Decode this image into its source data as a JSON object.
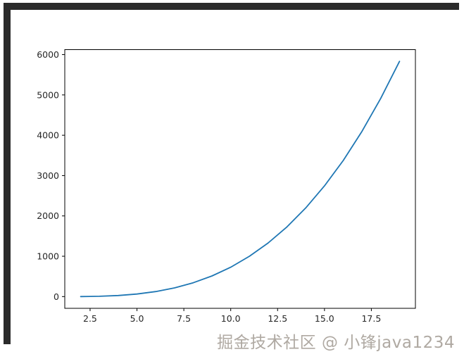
{
  "window": {
    "frame_color": "#2b2b2b",
    "background_color": "#ffffff"
  },
  "watermark": {
    "text": "掘金技术社区 @ 小锋java1234",
    "color": "#afa9a2"
  },
  "chart_data": {
    "type": "line",
    "title": "",
    "xlabel": "",
    "ylabel": "",
    "grid": false,
    "legend": "none",
    "line_color": "#1f77b4",
    "line_width": 1.8,
    "axes_color": "#000000",
    "tick_label_color": "#262626",
    "x": [
      2,
      3,
      4,
      5,
      6,
      7,
      8,
      9,
      10,
      11,
      12,
      13,
      14,
      15,
      16,
      17,
      18,
      19
    ],
    "y": [
      1,
      8,
      27,
      64,
      125,
      216,
      343,
      512,
      729,
      1000,
      1331,
      1728,
      2197,
      2744,
      3375,
      4096,
      4913,
      5832
    ],
    "xlim": [
      1.15,
      19.85
    ],
    "ylim": [
      -291,
      6123
    ],
    "xticks": [
      2.5,
      5.0,
      7.5,
      10.0,
      12.5,
      15.0,
      17.5
    ],
    "xtick_labels": [
      "2.5",
      "5.0",
      "7.5",
      "10.0",
      "12.5",
      "15.0",
      "17.5"
    ],
    "yticks": [
      0,
      1000,
      2000,
      3000,
      4000,
      5000,
      6000
    ],
    "ytick_labels": [
      "0",
      "1000",
      "2000",
      "3000",
      "4000",
      "5000",
      "6000"
    ]
  }
}
